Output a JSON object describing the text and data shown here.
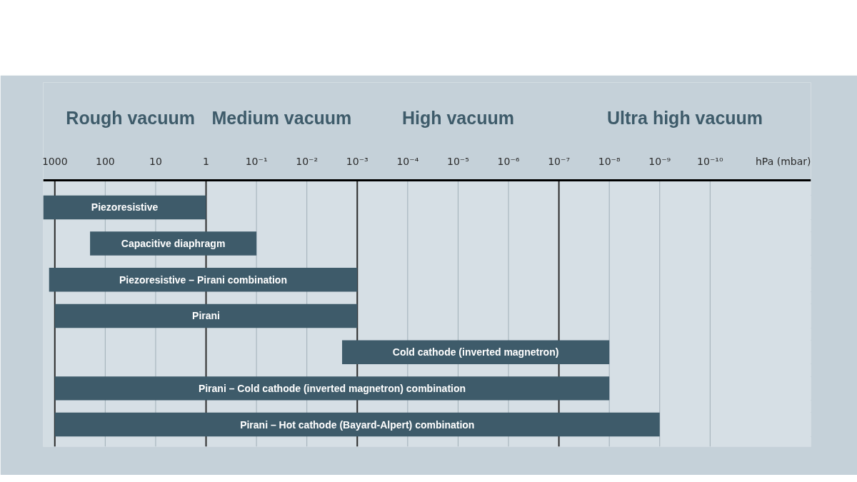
{
  "chart_data": {
    "type": "bar",
    "orientation": "horizontal",
    "log": "x",
    "xlabel": "hPa (mbar)",
    "categories": [
      "Piezoresistive",
      "Capacitive diaphragm",
      "Piezoresistive – Pirani combination",
      "Pirani",
      "Cold cathode (inverted magnetron)",
      "Pirani – Cold cathode (inverted magnetron) combination",
      "Pirani – Hot cathode (Bayard-Alpert) combination"
    ],
    "base": [
      1700,
      200,
      1300,
      1000,
      0.002,
      1000,
      1000
    ],
    "values": [
      -1699,
      -199.9,
      -1299.999,
      -999.999,
      -0.00199999,
      -999.99999999,
      -999.999999999
    ],
    "color": "#3e5b6a",
    "xlim": [
      1700,
      1e-12
    ],
    "xticks": [
      1000,
      100,
      10,
      1,
      {
        "value": 0.1,
        "label": "10⁻¹"
      },
      {
        "value": 0.01,
        "label": "10⁻²"
      },
      {
        "value": 0.001,
        "label": "10⁻³"
      },
      {
        "value": 0.0001,
        "label": "10⁻⁴"
      },
      {
        "value": 1e-05,
        "label": "10⁻⁵"
      },
      {
        "value": 1e-06,
        "label": "10⁻⁶"
      },
      {
        "value": 1e-07,
        "label": "10⁻⁷"
      },
      {
        "value": 1e-08,
        "label": "10⁻⁸"
      },
      {
        "value": 1e-09,
        "label": "10⁻⁹"
      },
      {
        "value": 1e-10,
        "label": "10⁻¹⁰"
      }
    ],
    "bands": [
      {
        "axis": "x",
        "from": 1000,
        "to": 1,
        "label": "Rough vacuum"
      },
      {
        "axis": "x",
        "from": 1,
        "to": 0.001,
        "label": "Medium vacuum"
      },
      {
        "axis": "x",
        "from": 0.001,
        "to": 1e-07,
        "label": "High vacuum"
      },
      {
        "axis": "x",
        "from": 1e-07,
        "to": 1e-12,
        "label": "Ultra high vacuum"
      }
    ],
    "grid": true
  }
}
